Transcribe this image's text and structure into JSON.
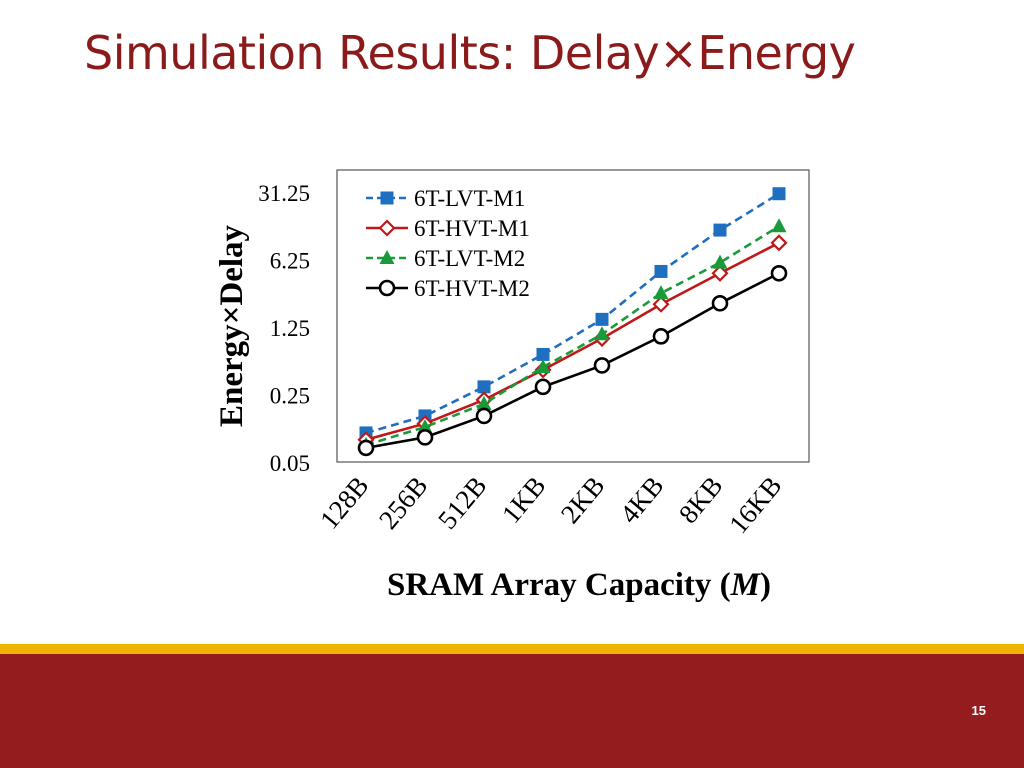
{
  "slide": {
    "title": "Simulation Results: Delay×Energy",
    "page_number": "15"
  },
  "colors": {
    "title": "#8b1a1a",
    "footer_gold": "#f0b400",
    "footer_red": "#951c1e"
  },
  "chart_data": {
    "type": "line",
    "title": "",
    "xlabel": "SRAM Array Capacity (",
    "xlabel_italic": "M",
    "xlabel_close": ")",
    "ylabel": "Energy×Delay",
    "y_scale": "log",
    "ylim": [
      0.05,
      31.25
    ],
    "y_ticks": [
      "31.25",
      "6.25",
      "1.25",
      "0.25",
      "0.05"
    ],
    "categories": [
      "128B",
      "256B",
      "512B",
      "1KB",
      "2KB",
      "4KB",
      "8KB",
      "16KB"
    ],
    "legend_position": "top-left",
    "grid": false,
    "series": [
      {
        "name": "6T-LVT-M1",
        "color": "#1f6fc0",
        "dash": "dashed",
        "marker": "square-filled",
        "values": [
          0.1,
          0.15,
          0.3,
          0.65,
          1.5,
          4.7,
          12.6,
          30.0
        ]
      },
      {
        "name": "6T-HVT-M1",
        "color": "#c01818",
        "dash": "solid",
        "marker": "diamond-open",
        "values": [
          0.085,
          0.125,
          0.22,
          0.45,
          0.95,
          2.15,
          4.5,
          9.3
        ]
      },
      {
        "name": "6T-LVT-M2",
        "color": "#1a9a3a",
        "dash": "dashed",
        "marker": "triangle-filled",
        "values": [
          0.075,
          0.115,
          0.2,
          0.48,
          1.05,
          2.8,
          5.8,
          13.8
        ]
      },
      {
        "name": "6T-HVT-M2",
        "color": "#000000",
        "dash": "solid",
        "marker": "circle-open",
        "values": [
          0.07,
          0.09,
          0.15,
          0.3,
          0.5,
          1.0,
          2.2,
          4.5
        ]
      }
    ]
  }
}
